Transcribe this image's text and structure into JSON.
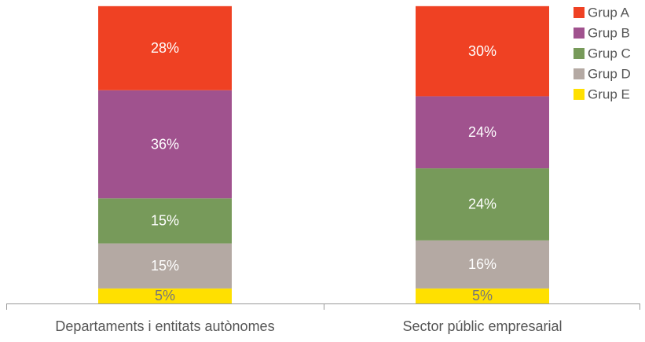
{
  "chart_data": {
    "type": "stacked-bar",
    "categories": [
      "Departaments i entitats autònomes",
      "Sector públic empresarial"
    ],
    "series": [
      {
        "name": "Grup A",
        "color": "#ef4123",
        "values": [
          28,
          30
        ],
        "value_labels": [
          "28%",
          "30%"
        ]
      },
      {
        "name": "Grup B",
        "color": "#a0528e",
        "values": [
          36,
          24
        ],
        "value_labels": [
          "36%",
          "24%"
        ]
      },
      {
        "name": "Grup C",
        "color": "#779a5a",
        "values": [
          15,
          24
        ],
        "value_labels": [
          "15%",
          "24%"
        ]
      },
      {
        "name": "Grup D",
        "color": "#b4a9a3",
        "values": [
          15,
          16
        ],
        "value_labels": [
          "15%",
          "16%"
        ]
      },
      {
        "name": "Grup E",
        "color": "#ffe000",
        "values": [
          5,
          5
        ],
        "value_labels": [
          "5%",
          "5%"
        ]
      }
    ],
    "legend": "top-right"
  }
}
